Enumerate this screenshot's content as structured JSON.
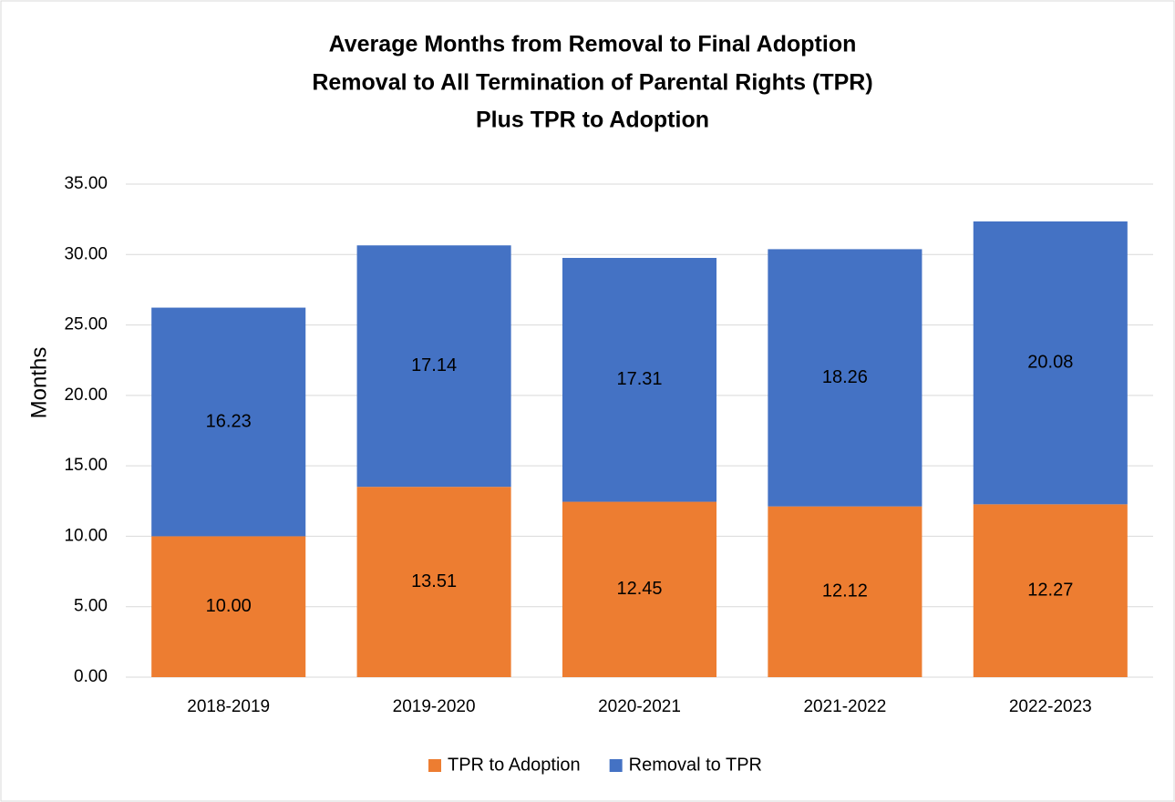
{
  "chart_data": {
    "type": "stacked_bar",
    "title": [
      "Average Months from Removal to Final Adoption",
      "Removal to All Termination of Parental Rights (TPR)",
      "Plus TPR to Adoption"
    ],
    "y_label": "Months",
    "categories": [
      "2018-2019",
      "2019-2020",
      "2020-2021",
      "2021-2022",
      "2022-2023"
    ],
    "series": [
      {
        "name": "TPR to Adoption",
        "color": "#ed7d31",
        "values": [
          10,
          13.51,
          12.45,
          12.12,
          12.27
        ],
        "value_labels": [
          "10.00",
          "13.51",
          "12.45",
          "12.12",
          "12.27"
        ]
      },
      {
        "name": "Removal to TPR",
        "color": "#4472c4",
        "values": [
          16.23,
          17.14,
          17.31,
          18.26,
          20.08
        ]
      }
    ],
    "ylim": [
      0,
      35
    ],
    "yticks": [
      {
        "value": 0,
        "label": "0.00"
      },
      {
        "value": 5,
        "label": "5.00"
      },
      {
        "value": 10,
        "label": "10.00"
      },
      {
        "value": 15,
        "label": "15.00"
      },
      {
        "value": 20,
        "label": "20.00"
      },
      {
        "value": 25,
        "label": "25.00"
      },
      {
        "value": 30,
        "label": "30.00"
      },
      {
        "value": 35,
        "label": "35.00"
      }
    ],
    "grid": true,
    "legend": "bottom"
  }
}
